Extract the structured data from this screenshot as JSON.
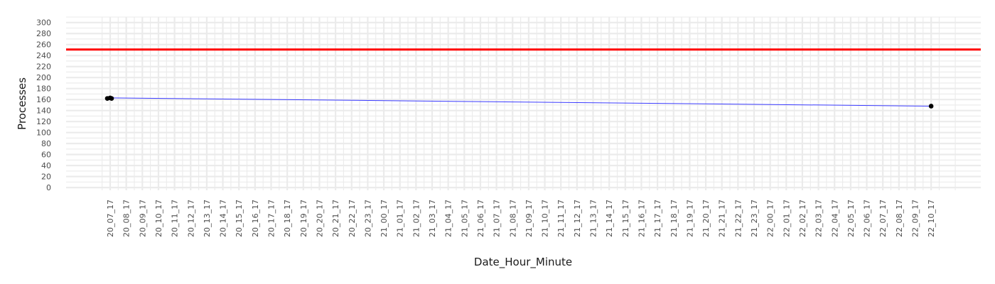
{
  "chart_data": {
    "type": "line",
    "title": "",
    "xlabel": "Date_Hour_Minute",
    "ylabel": "Processes",
    "ylim": [
      -5,
      310
    ],
    "y_ticks": [
      0,
      20,
      40,
      60,
      80,
      100,
      120,
      140,
      160,
      180,
      200,
      220,
      240,
      260,
      280,
      300
    ],
    "grid": true,
    "legend": "none",
    "threshold": {
      "value": 251,
      "color": "#ff0000"
    },
    "line_color": "#3a3aff",
    "point_color": "#000000",
    "categories": [
      "20_07_17",
      "20_08_17",
      "20_09_17",
      "20_10_17",
      "20_11_17",
      "20_12_17",
      "20_13_17",
      "20_14_17",
      "20_15_17",
      "20_16_17",
      "20_17_17",
      "20_18_17",
      "20_19_17",
      "20_20_17",
      "20_21_17",
      "20_22_17",
      "20_23_17",
      "21_00_17",
      "21_01_17",
      "21_02_17",
      "21_03_17",
      "21_04_17",
      "21_05_17",
      "21_06_17",
      "21_07_17",
      "21_08_17",
      "21_09_17",
      "21_10_17",
      "21_11_17",
      "21_12_17",
      "21_13_17",
      "21_14_17",
      "21_15_17",
      "21_16_17",
      "21_17_17",
      "21_18_17",
      "21_19_17",
      "21_20_17",
      "21_21_17",
      "21_22_17",
      "21_23_17",
      "22_00_17",
      "22_01_17",
      "22_02_17",
      "22_03_17",
      "22_04_17",
      "22_05_17",
      "22_06_17",
      "22_07_17",
      "22_08_17",
      "22_09_17",
      "22_10_17"
    ],
    "points": [
      {
        "x": "20_07_17",
        "y": 162
      },
      {
        "x": "20_07_17",
        "y": 163
      },
      {
        "x": "20_07_17",
        "y": 162
      },
      {
        "x": "22_10_17",
        "y": 148
      }
    ]
  }
}
